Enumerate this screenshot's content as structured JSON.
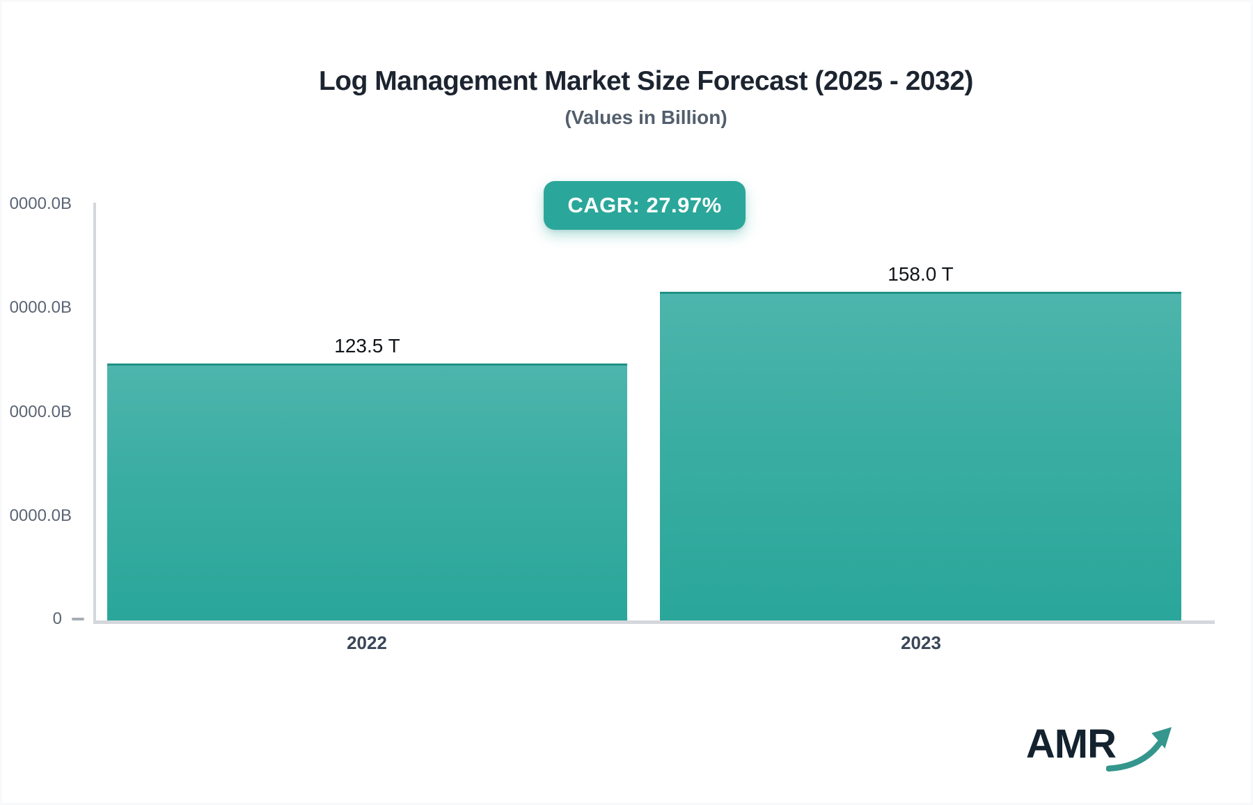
{
  "page": {
    "title": "Log Management Market Size Forecast (2025 - 2032)",
    "subtitle": "(Values in Billion)",
    "cagr_badge": "CAGR: 27.97%",
    "logo_text": "AMR"
  },
  "colors": {
    "accent_teal": "#2aa79a",
    "bar_gradient_top": "#4db5ac",
    "bar_gradient_bottom": "#2aa69a",
    "bar_top_edge": "#1f9184",
    "axis_line": "#d4d7db",
    "y_tick_text": "#5b6573",
    "x_tick_text": "#3b4758",
    "title_text": "#1c2430",
    "subtitle_text": "#525e6c",
    "logo_dark": "#13222e",
    "logo_arrow": "#35968d"
  },
  "chart_data": {
    "type": "bar",
    "title": "Log Management Market Size Forecast (2025 - 2032)",
    "subtitle": "(Values in Billion)",
    "cagr_label": "CAGR: 27.97%",
    "cagr_percent": 27.97,
    "categories": [
      "2022",
      "2023"
    ],
    "values": [
      123.5,
      158.0
    ],
    "unit": "T",
    "value_labels": [
      "123.5 T",
      "158.0 T"
    ],
    "ylim": [
      0,
      200
    ],
    "y_tick_labels_visible": [
      "0000.0B",
      "0000.0B",
      "0000.0B",
      "0000.0B",
      "0"
    ],
    "grid": false,
    "legend": "none",
    "bar_color": "teal gradient"
  }
}
